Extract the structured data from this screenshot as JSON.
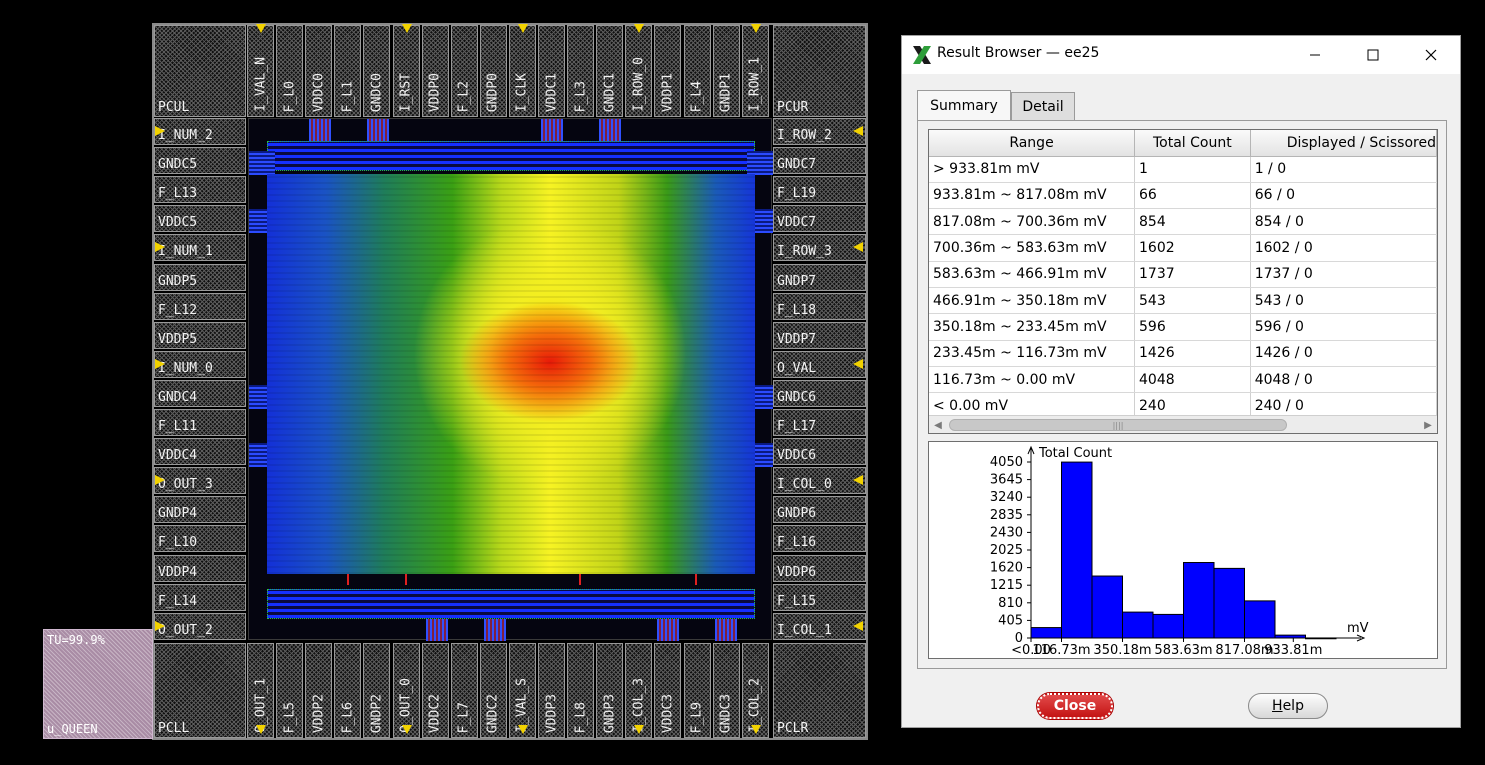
{
  "layout": {
    "corners": {
      "top_left": "PCUL",
      "top_right": "PCUR",
      "bottom_left": "PCLL",
      "bottom_right": "PCLR"
    },
    "top_pads": [
      "I_VAL_N",
      "F_L0",
      "VDDC0",
      "F_L1",
      "GNDC0",
      "I_RST",
      "VDDP0",
      "F_L2",
      "GNDP0",
      "I_CLK",
      "VDDC1",
      "F_L3",
      "GNDC1",
      "I_ROW_0",
      "VDDP1",
      "F_L4",
      "GNDP1",
      "I_ROW_1"
    ],
    "bottom_pads": [
      "O_OUT_1",
      "F_L5",
      "VDDP2",
      "F_L6",
      "GNDP2",
      "O_OUT_0",
      "VDDC2",
      "F_L7",
      "GNDC2",
      "I_VAL_S",
      "VDDP3",
      "F_L8",
      "GNDP3",
      "I_COL_3",
      "VDDC3",
      "F_L9",
      "GNDC3",
      "I_COL_2"
    ],
    "left_pads": [
      "I_NUM_2",
      "GNDC5",
      "F_L13",
      "VDDC5",
      "I_NUM_1",
      "GNDP5",
      "F_L12",
      "VDDP5",
      "I_NUM_0",
      "GNDC4",
      "F_L11",
      "VDDC4",
      "O_OUT_3",
      "GNDP4",
      "F_L10",
      "VDDP4",
      "F_L14",
      "O_OUT_2"
    ],
    "right_pads": [
      "I_ROW_2",
      "GNDC7",
      "F_L19",
      "VDDC7",
      "I_ROW_3",
      "GNDP7",
      "F_L18",
      "VDDP7",
      "O_VAL",
      "GNDC6",
      "F_L17",
      "VDDC6",
      "I_COL_0",
      "GNDP6",
      "F_L16",
      "VDDP6",
      "F_L15",
      "I_COL_1"
    ],
    "tu_box": {
      "line1": "TU=99.9%",
      "line2": "u_QUEEN"
    }
  },
  "window": {
    "title": "Result Browser — ee25",
    "tabs": [
      {
        "label": "Summary"
      },
      {
        "label": "Detail"
      }
    ],
    "table": {
      "columns": [
        "Range",
        "Total Count",
        "Displayed / Scissored"
      ],
      "rows": [
        [
          "> 933.81m mV",
          "1",
          "1 / 0"
        ],
        [
          "933.81m ~ 817.08m mV",
          "66",
          "66 / 0"
        ],
        [
          "817.08m ~ 700.36m mV",
          "854",
          "854 / 0"
        ],
        [
          "700.36m ~ 583.63m mV",
          "1602",
          "1602 / 0"
        ],
        [
          "583.63m ~ 466.91m mV",
          "1737",
          "1737 / 0"
        ],
        [
          "466.91m ~ 350.18m mV",
          "543",
          "543 / 0"
        ],
        [
          "350.18m ~ 233.45m mV",
          "596",
          "596 / 0"
        ],
        [
          "233.45m ~ 116.73m mV",
          "1426",
          "1426 / 0"
        ],
        [
          "116.73m ~ 0.00 mV",
          "4048",
          "4048 / 0"
        ],
        [
          "< 0.00 mV",
          "240",
          "240 / 0"
        ]
      ]
    },
    "buttons": {
      "close": "Close",
      "help": "Help"
    }
  },
  "chart_data": {
    "type": "bar",
    "ylabel": "Total Count",
    "xlabel": "mV",
    "y_ticks": [
      0,
      405,
      810,
      1215,
      1620,
      2025,
      2430,
      2835,
      3240,
      3645,
      4050
    ],
    "x_tick_labels": [
      "<0.00",
      "116.73m",
      "350.18m",
      "583.63m",
      "817.08m",
      "933.81m"
    ],
    "ylim": [
      0,
      4050
    ],
    "values": [
      240,
      4048,
      1426,
      596,
      543,
      1737,
      1602,
      854,
      66,
      1
    ],
    "bar_color": "#0000ff"
  }
}
